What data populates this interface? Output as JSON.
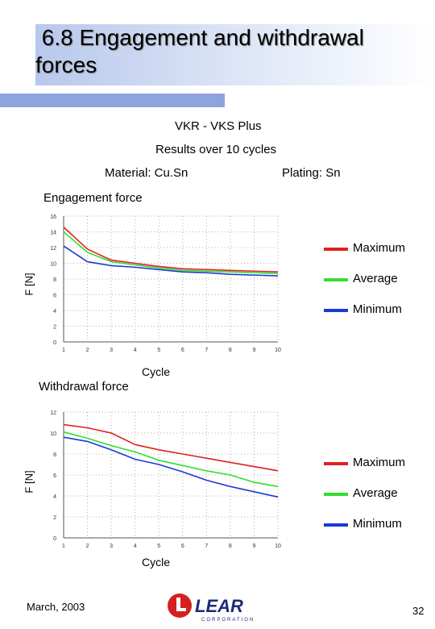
{
  "title": " 6.8 Engagement and withdrawal\nforces",
  "heading": "VKR - VKS  Plus",
  "subheading": "Results over 10 cycles",
  "material": "Material: Cu.Sn",
  "plating": "Plating: Sn",
  "footer": {
    "date": "March, 2003",
    "page": "32",
    "logo_text": "LEAR",
    "logo_subtext": "CORPORATION"
  },
  "colors": {
    "maximum": "#e02020",
    "average": "#33dd33",
    "minimum": "#1a3ad6",
    "title_bar": "#8fa3de"
  },
  "chart_data": [
    {
      "type": "line",
      "title": "Engagement force",
      "xlabel": "Cycle",
      "ylabel": "F [N]",
      "x": [
        1,
        2,
        3,
        4,
        5,
        6,
        7,
        8,
        9,
        10
      ],
      "xlim": [
        1,
        10
      ],
      "ylim": [
        0,
        16
      ],
      "yticks": [
        0,
        2,
        4,
        6,
        8,
        10,
        12,
        14,
        16
      ],
      "grid": true,
      "legend": "right",
      "series": [
        {
          "name": "Maximum",
          "color": "#e02020",
          "values": [
            14.6,
            11.8,
            10.4,
            10.0,
            9.6,
            9.3,
            9.2,
            9.1,
            9.0,
            8.9
          ]
        },
        {
          "name": "Average",
          "color": "#33dd33",
          "values": [
            14.0,
            11.4,
            10.2,
            9.8,
            9.4,
            9.1,
            9.0,
            8.9,
            8.8,
            8.7
          ]
        },
        {
          "name": "Minimum",
          "color": "#1a3ad6",
          "values": [
            12.2,
            10.2,
            9.7,
            9.5,
            9.2,
            8.9,
            8.8,
            8.6,
            8.5,
            8.4
          ]
        }
      ]
    },
    {
      "type": "line",
      "title": "Withdrawal force",
      "xlabel": "Cycle",
      "ylabel": "F [N]",
      "x": [
        1,
        2,
        3,
        4,
        5,
        6,
        7,
        8,
        9,
        10
      ],
      "xlim": [
        1,
        10
      ],
      "ylim": [
        0,
        12
      ],
      "yticks": [
        0,
        2,
        4,
        6,
        8,
        10,
        12
      ],
      "grid": true,
      "legend": "right",
      "series": [
        {
          "name": "Maximum",
          "color": "#e02020",
          "values": [
            10.8,
            10.5,
            10.0,
            8.9,
            8.4,
            8.0,
            7.6,
            7.2,
            6.8,
            6.4
          ]
        },
        {
          "name": "Average",
          "color": "#33dd33",
          "values": [
            10.1,
            9.5,
            8.8,
            8.2,
            7.4,
            6.9,
            6.4,
            6.0,
            5.3,
            4.9
          ]
        },
        {
          "name": "Minimum",
          "color": "#1a3ad6",
          "values": [
            9.6,
            9.2,
            8.4,
            7.5,
            7.0,
            6.3,
            5.5,
            4.9,
            4.4,
            3.9
          ]
        }
      ]
    }
  ]
}
